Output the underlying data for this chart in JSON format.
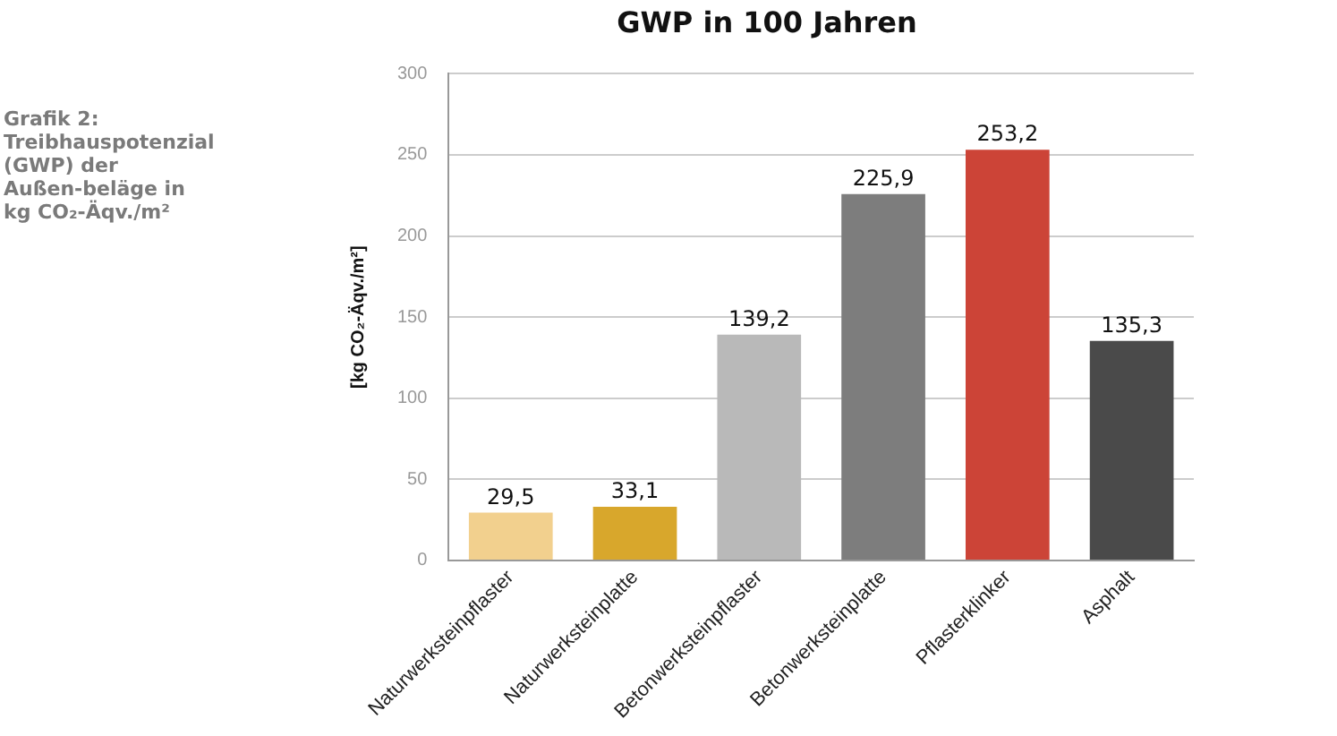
{
  "chart_data": {
    "type": "bar",
    "title": "GWP in 100 Jahren",
    "ylabel": "[kg CO₂-Äqv./m²]",
    "annotations": [
      "Grafik 2: Treibhauspotenzial (GWP) der Außen-beläge in kg CO₂-Äqv./m²"
    ],
    "categories": [
      "Naturwerksteinpflaster",
      "Naturwerksteinplatte",
      "Betonwerksteinpflaster",
      "Betonwerksteinplatte",
      "Pflasterklinker",
      "Asphalt"
    ],
    "values": [
      29.5,
      33.1,
      139.2,
      225.9,
      253.2,
      135.3
    ],
    "value_labels": [
      "29,5",
      "33,1",
      "139,2",
      "225,9",
      "253,2",
      "135,3"
    ],
    "colors": [
      "#f2d08e",
      "#d8a72c",
      "#b9b9b9",
      "#7d7d7d",
      "#cc4437",
      "#4a4a4a"
    ],
    "ylim": [
      0,
      300
    ],
    "yticks": [
      0,
      50,
      100,
      150,
      200,
      250,
      300
    ],
    "grid": "y",
    "legend": false
  }
}
